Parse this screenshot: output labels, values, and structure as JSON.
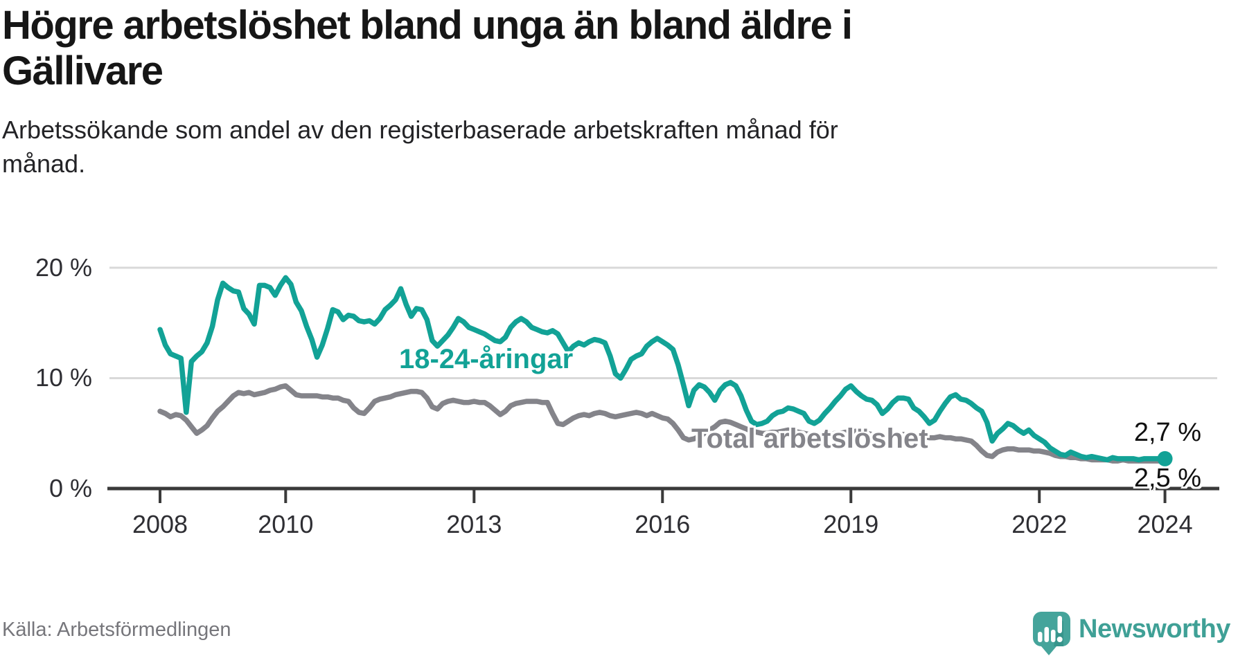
{
  "header": {
    "title_lines": [
      "Högre arbetslöshet bland unga än bland äldre i",
      "Gällivare"
    ],
    "subtitle_lines": [
      "Arbetssökande som andel av den registerbaserade arbetskraften månad för",
      "månad."
    ]
  },
  "chart_data": {
    "type": "line",
    "title": "Högre arbetslöshet bland unga än bland äldre i Gällivare",
    "subtitle": "Arbetssökande som andel av den registerbaserade arbetskraften månad för månad.",
    "xlabel": "",
    "ylabel": "",
    "x_unit": "month",
    "x_range": [
      "2008-01",
      "2024-01"
    ],
    "ylim": [
      0,
      20
    ],
    "grid": "horizontal",
    "legend_position": "inline-labels",
    "yticks": [
      {
        "value": 20,
        "label": "20 %"
      },
      {
        "value": 10,
        "label": "10 %"
      },
      {
        "value": 0,
        "label": "0 %"
      }
    ],
    "xticks": [
      {
        "year": 2008,
        "label": "2008"
      },
      {
        "year": 2010,
        "label": "2010"
      },
      {
        "year": 2013,
        "label": "2013"
      },
      {
        "year": 2016,
        "label": "2016"
      },
      {
        "year": 2019,
        "label": "2019"
      },
      {
        "year": 2022,
        "label": "2022"
      },
      {
        "year": 2024,
        "label": "2024"
      }
    ],
    "style": {
      "grid_color": "#d9d9d9",
      "axis_color": "#3a3a3a",
      "youth_color": "#12a296",
      "total_color": "#84848a"
    },
    "series": [
      {
        "name": "18-24-åringar",
        "label": "18-24-åringar",
        "color": "#12a296",
        "end_label": "2,7 %",
        "end_value": 2.7,
        "values": [
          14.4,
          13.0,
          12.2,
          12.0,
          11.8,
          6.9,
          11.5,
          12.0,
          12.4,
          13.2,
          14.7,
          17.1,
          18.6,
          18.2,
          17.9,
          17.8,
          16.3,
          15.8,
          14.9,
          18.4,
          18.4,
          18.2,
          17.5,
          18.4,
          19.1,
          18.5,
          16.9,
          16.1,
          14.7,
          13.5,
          11.9,
          13.0,
          14.5,
          16.2,
          16.0,
          15.3,
          15.7,
          15.6,
          15.2,
          15.1,
          15.2,
          14.9,
          15.4,
          16.2,
          16.6,
          17.1,
          18.1,
          16.7,
          15.6,
          16.3,
          16.2,
          15.3,
          13.4,
          12.9,
          13.4,
          13.9,
          14.6,
          15.4,
          15.1,
          14.6,
          14.4,
          14.2,
          14.0,
          13.7,
          13.4,
          13.3,
          13.7,
          14.6,
          15.1,
          15.4,
          15.1,
          14.6,
          14.4,
          14.2,
          14.1,
          14.3,
          14.0,
          13.2,
          12.4,
          12.9,
          13.2,
          13.0,
          13.3,
          13.5,
          13.4,
          13.2,
          12.0,
          10.4,
          10.0,
          10.8,
          11.7,
          12.0,
          12.2,
          12.9,
          13.3,
          13.6,
          13.3,
          13.0,
          12.6,
          11.2,
          9.4,
          7.5,
          8.9,
          9.4,
          9.2,
          8.7,
          8.0,
          8.9,
          9.4,
          9.6,
          9.3,
          8.4,
          7.1,
          6.1,
          5.8,
          5.9,
          6.1,
          6.6,
          6.9,
          7.0,
          7.3,
          7.2,
          7.0,
          6.8,
          6.1,
          5.9,
          6.2,
          6.8,
          7.3,
          7.9,
          8.4,
          9.0,
          9.3,
          8.8,
          8.4,
          8.1,
          8.0,
          7.6,
          6.8,
          7.2,
          7.8,
          8.2,
          8.2,
          8.1,
          7.3,
          7.0,
          6.5,
          5.9,
          6.2,
          7.0,
          7.7,
          8.3,
          8.5,
          8.1,
          8.0,
          7.7,
          7.3,
          7.0,
          6.0,
          4.3,
          5.0,
          5.4,
          5.9,
          5.7,
          5.3,
          5.0,
          5.3,
          4.8,
          4.5,
          4.2,
          3.7,
          3.4,
          3.1,
          3.0,
          3.3,
          3.1,
          2.9,
          2.8,
          2.9,
          2.8,
          2.7,
          2.6,
          2.8,
          2.7,
          2.7,
          2.7,
          2.7,
          2.6,
          2.7,
          2.7,
          2.7,
          2.7,
          2.7
        ]
      },
      {
        "name": "Total arbetslöshet",
        "label": "Total arbetslöshet",
        "color": "#84848a",
        "end_label": "2,5 %",
        "end_value": 2.5,
        "values": [
          7.0,
          6.8,
          6.5,
          6.7,
          6.6,
          6.2,
          5.6,
          5.0,
          5.3,
          5.7,
          6.4,
          7.0,
          7.4,
          7.9,
          8.4,
          8.7,
          8.6,
          8.7,
          8.5,
          8.6,
          8.7,
          8.9,
          9.0,
          9.2,
          9.3,
          8.9,
          8.5,
          8.4,
          8.4,
          8.4,
          8.4,
          8.3,
          8.3,
          8.2,
          8.2,
          8.0,
          7.9,
          7.3,
          6.9,
          6.8,
          7.3,
          7.9,
          8.1,
          8.2,
          8.3,
          8.5,
          8.6,
          8.7,
          8.8,
          8.8,
          8.7,
          8.2,
          7.4,
          7.2,
          7.7,
          7.9,
          8.0,
          7.9,
          7.8,
          7.8,
          7.9,
          7.8,
          7.8,
          7.5,
          7.1,
          6.7,
          7.0,
          7.5,
          7.7,
          7.8,
          7.9,
          7.9,
          7.9,
          7.8,
          7.8,
          6.8,
          5.9,
          5.8,
          6.1,
          6.4,
          6.6,
          6.7,
          6.6,
          6.8,
          6.9,
          6.8,
          6.6,
          6.5,
          6.6,
          6.7,
          6.8,
          6.9,
          6.8,
          6.6,
          6.8,
          6.6,
          6.4,
          6.3,
          5.9,
          5.3,
          4.6,
          4.4,
          4.5,
          4.7,
          5.0,
          5.3,
          5.6,
          6.0,
          6.1,
          6.0,
          5.8,
          5.6,
          5.4,
          5.2,
          5.1,
          5.0,
          5.0,
          5.1,
          5.1,
          5.2,
          5.3,
          5.2,
          5.1,
          5.0,
          4.9,
          4.8,
          4.7,
          4.8,
          4.9,
          5.0,
          5.0,
          5.1,
          5.1,
          5.2,
          5.1,
          5.0,
          4.9,
          4.9,
          4.8,
          4.8,
          4.8,
          4.9,
          4.9,
          4.8,
          4.8,
          4.8,
          4.7,
          4.6,
          4.6,
          4.7,
          4.6,
          4.6,
          4.5,
          4.5,
          4.4,
          4.3,
          3.9,
          3.4,
          3.0,
          2.9,
          3.3,
          3.5,
          3.6,
          3.6,
          3.5,
          3.5,
          3.5,
          3.4,
          3.4,
          3.3,
          3.2,
          3.0,
          2.9,
          2.9,
          2.8,
          2.8,
          2.7,
          2.7,
          2.6,
          2.6,
          2.6,
          2.6,
          2.5,
          2.5,
          2.6,
          2.5,
          2.5,
          2.5,
          2.5,
          2.5,
          2.5,
          2.5,
          2.5
        ]
      }
    ]
  },
  "footer": {
    "source": "Källa: Arbetsförmedlingen",
    "brand": "Newsworthy"
  }
}
